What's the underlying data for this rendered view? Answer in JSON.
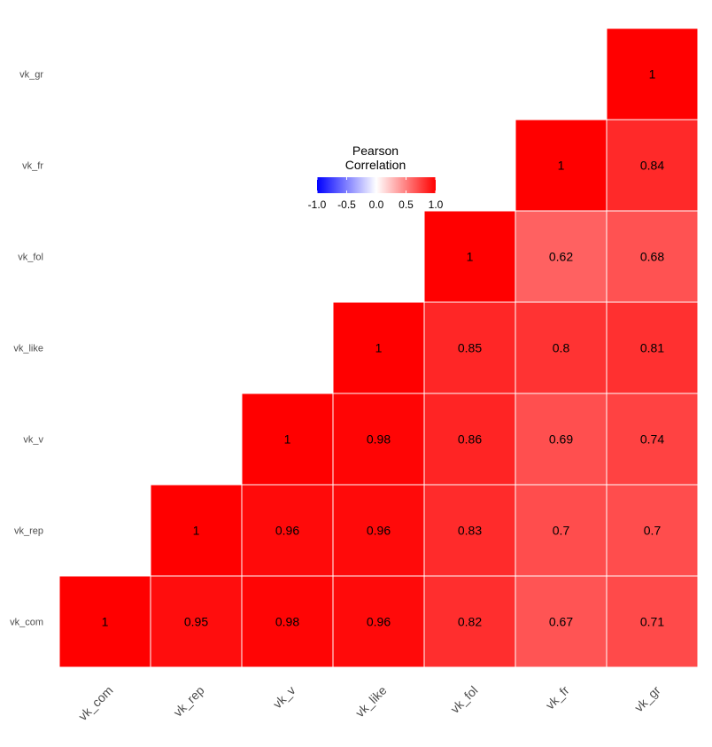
{
  "chart_data": {
    "type": "heatmap",
    "variables": [
      "vk_com",
      "vk_rep",
      "vk_v",
      "vk_like",
      "vk_fol",
      "vk_fr",
      "vk_gr"
    ],
    "cells": [
      {
        "x": "vk_com",
        "y": "vk_com",
        "value": 1,
        "label": "1"
      },
      {
        "x": "vk_rep",
        "y": "vk_com",
        "value": 0.95,
        "label": "0.95"
      },
      {
        "x": "vk_v",
        "y": "vk_com",
        "value": 0.98,
        "label": "0.98"
      },
      {
        "x": "vk_like",
        "y": "vk_com",
        "value": 0.96,
        "label": "0.96"
      },
      {
        "x": "vk_fol",
        "y": "vk_com",
        "value": 0.82,
        "label": "0.82"
      },
      {
        "x": "vk_fr",
        "y": "vk_com",
        "value": 0.67,
        "label": "0.67"
      },
      {
        "x": "vk_gr",
        "y": "vk_com",
        "value": 0.71,
        "label": "0.71"
      },
      {
        "x": "vk_rep",
        "y": "vk_rep",
        "value": 1,
        "label": "1"
      },
      {
        "x": "vk_v",
        "y": "vk_rep",
        "value": 0.96,
        "label": "0.96"
      },
      {
        "x": "vk_like",
        "y": "vk_rep",
        "value": 0.96,
        "label": "0.96"
      },
      {
        "x": "vk_fol",
        "y": "vk_rep",
        "value": 0.83,
        "label": "0.83"
      },
      {
        "x": "vk_fr",
        "y": "vk_rep",
        "value": 0.7,
        "label": "0.7"
      },
      {
        "x": "vk_gr",
        "y": "vk_rep",
        "value": 0.7,
        "label": "0.7"
      },
      {
        "x": "vk_v",
        "y": "vk_v",
        "value": 1,
        "label": "1"
      },
      {
        "x": "vk_like",
        "y": "vk_v",
        "value": 0.98,
        "label": "0.98"
      },
      {
        "x": "vk_fol",
        "y": "vk_v",
        "value": 0.86,
        "label": "0.86"
      },
      {
        "x": "vk_fr",
        "y": "vk_v",
        "value": 0.69,
        "label": "0.69"
      },
      {
        "x": "vk_gr",
        "y": "vk_v",
        "value": 0.74,
        "label": "0.74"
      },
      {
        "x": "vk_like",
        "y": "vk_like",
        "value": 1,
        "label": "1"
      },
      {
        "x": "vk_fol",
        "y": "vk_like",
        "value": 0.85,
        "label": "0.85"
      },
      {
        "x": "vk_fr",
        "y": "vk_like",
        "value": 0.8,
        "label": "0.8"
      },
      {
        "x": "vk_gr",
        "y": "vk_like",
        "value": 0.81,
        "label": "0.81"
      },
      {
        "x": "vk_fol",
        "y": "vk_fol",
        "value": 1,
        "label": "1"
      },
      {
        "x": "vk_fr",
        "y": "vk_fol",
        "value": 0.62,
        "label": "0.62"
      },
      {
        "x": "vk_gr",
        "y": "vk_fol",
        "value": 0.68,
        "label": "0.68"
      },
      {
        "x": "vk_fr",
        "y": "vk_fr",
        "value": 1,
        "label": "1"
      },
      {
        "x": "vk_gr",
        "y": "vk_fr",
        "value": 0.84,
        "label": "0.84"
      },
      {
        "x": "vk_gr",
        "y": "vk_gr",
        "value": 1,
        "label": "1"
      }
    ],
    "legend": {
      "title_line1": "Pearson",
      "title_line2": "Correlation",
      "ticks": [
        "-1.0",
        "-0.5",
        "0.0",
        "0.5",
        "1.0"
      ],
      "tick_values": [
        -1,
        -0.5,
        0,
        0.5,
        1
      ],
      "limits": [
        -1,
        1
      ],
      "placement": "top-center"
    },
    "colors": {
      "low": "#0000ff",
      "mid": "#ffffff",
      "high": "#ff0000"
    },
    "grid": false
  }
}
